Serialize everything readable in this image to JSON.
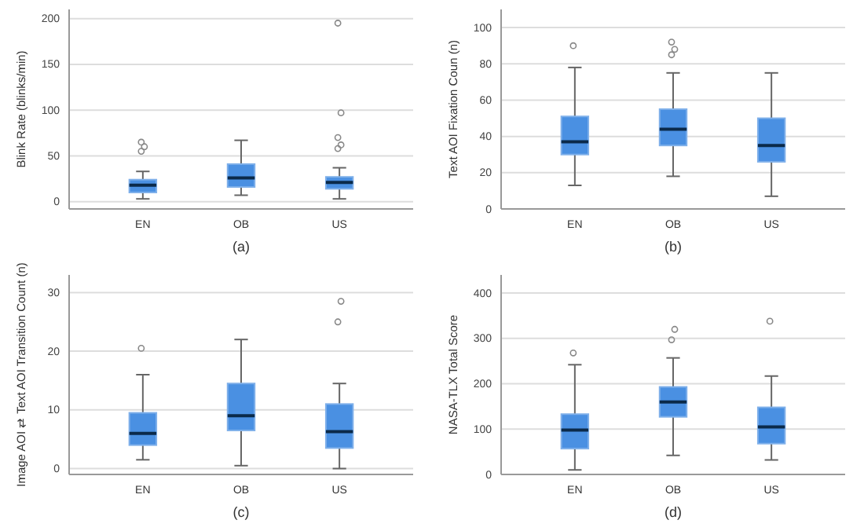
{
  "chart_data": [
    {
      "type": "box",
      "categories": [
        "EN",
        "OB",
        "US"
      ],
      "xlabel": "(a)",
      "ylabel": "Blink Rate (blinks/min)",
      "ylim": [
        -8,
        210
      ],
      "yticks": [
        0,
        50,
        100,
        150,
        200
      ],
      "grid": "y",
      "color": "#4a90e2",
      "boxes": [
        {
          "low": 3,
          "q1": 10,
          "median": 18,
          "q3": 24,
          "high": 33,
          "outliers": [
            55,
            60,
            65
          ]
        },
        {
          "low": 7,
          "q1": 16,
          "median": 26,
          "q3": 41,
          "high": 67
        },
        {
          "low": 3,
          "q1": 14,
          "median": 21,
          "q3": 27,
          "high": 37,
          "outliers": [
            58,
            62,
            70,
            97,
            195
          ]
        }
      ]
    },
    {
      "type": "box",
      "categories": [
        "EN",
        "OB",
        "US"
      ],
      "xlabel": "(b)",
      "ylabel": "Text AOI Fixation Coun (n)",
      "ylim": [
        0,
        110
      ],
      "yticks": [
        0,
        20,
        40,
        60,
        80,
        100
      ],
      "grid": "y",
      "color": "#4a90e2",
      "boxes": [
        {
          "low": 13,
          "q1": 30,
          "median": 37,
          "q3": 51,
          "high": 78,
          "outliers": [
            90
          ]
        },
        {
          "low": 18,
          "q1": 35,
          "median": 44,
          "q3": 55,
          "high": 75,
          "outliers": [
            85,
            88,
            92
          ]
        },
        {
          "low": 7,
          "q1": 26,
          "median": 35,
          "q3": 50,
          "high": 75
        }
      ]
    },
    {
      "type": "box",
      "categories": [
        "EN",
        "OB",
        "US"
      ],
      "xlabel": "(c)",
      "ylabel": "Image AOI ⇄ Text AOI Transition Count (n)",
      "ylim": [
        -1,
        33
      ],
      "yticks": [
        0,
        10,
        20,
        30
      ],
      "grid": "y",
      "color": "#4a90e2",
      "boxes": [
        {
          "low": 1.5,
          "q1": 4,
          "median": 6,
          "q3": 9.5,
          "high": 16,
          "outliers": [
            20.5
          ]
        },
        {
          "low": 0.5,
          "q1": 6.5,
          "median": 9,
          "q3": 14.5,
          "high": 22
        },
        {
          "low": 0,
          "q1": 3.5,
          "median": 6.3,
          "q3": 11,
          "high": 14.5,
          "outliers": [
            25,
            28.5
          ]
        }
      ]
    },
    {
      "type": "box",
      "categories": [
        "EN",
        "OB",
        "US"
      ],
      "xlabel": "(d)",
      "ylabel": "NASA-TLX Total Score",
      "ylim": [
        0,
        440
      ],
      "yticks": [
        0,
        100,
        200,
        300,
        400
      ],
      "grid": "y",
      "color": "#4a90e2",
      "boxes": [
        {
          "low": 10,
          "q1": 57,
          "median": 98,
          "q3": 133,
          "high": 242,
          "outliers": [
            268
          ]
        },
        {
          "low": 42,
          "q1": 127,
          "median": 160,
          "q3": 193,
          "high": 257,
          "outliers": [
            297,
            320
          ]
        },
        {
          "low": 32,
          "q1": 68,
          "median": 105,
          "q3": 148,
          "high": 217,
          "outliers": [
            338
          ]
        }
      ]
    }
  ]
}
